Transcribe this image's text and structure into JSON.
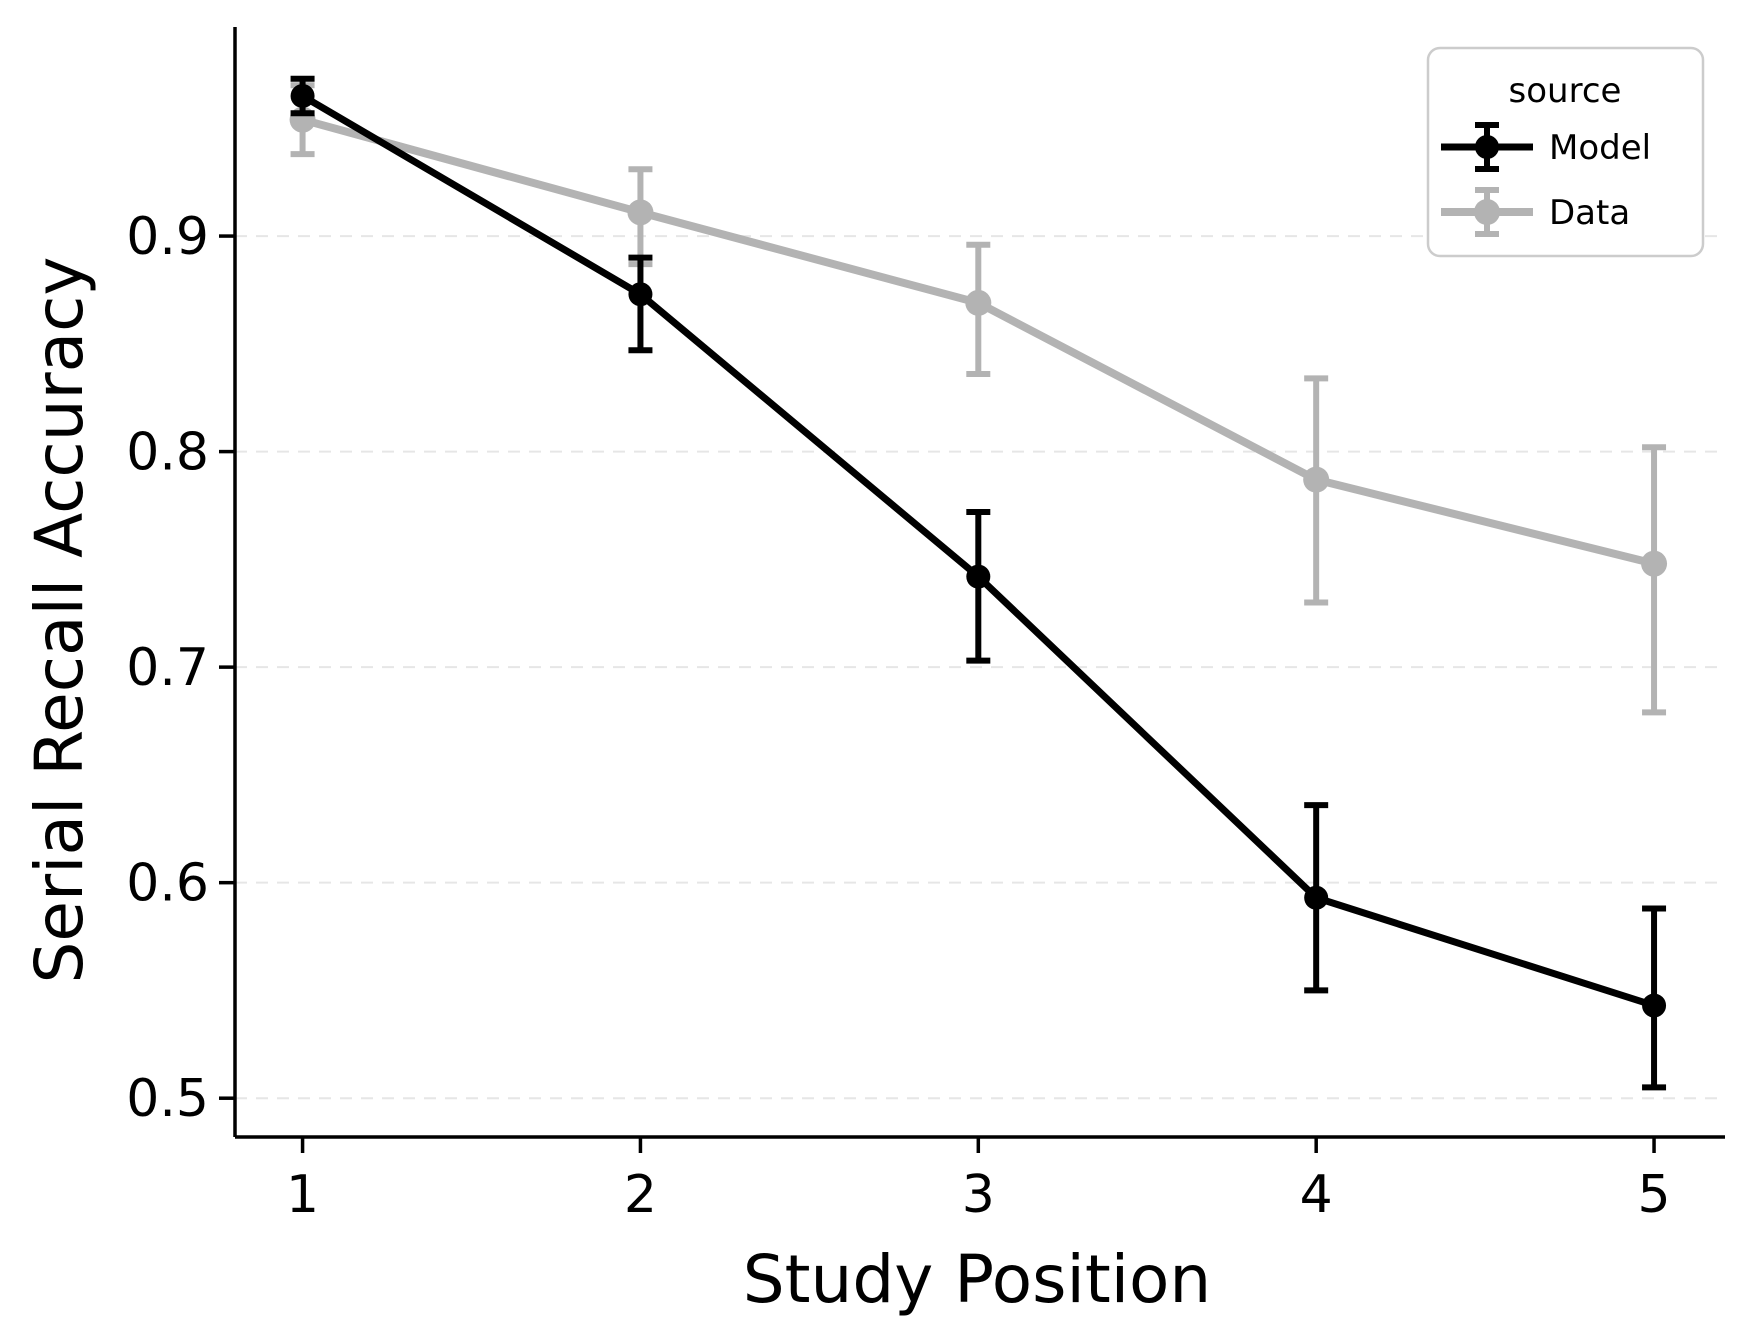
{
  "chart_data": {
    "type": "line",
    "title": "",
    "xlabel": "Study Position",
    "ylabel": "Serial Recall Accuracy",
    "x": [
      1,
      2,
      3,
      4,
      5
    ],
    "xticklabels": [
      "1",
      "2",
      "3",
      "4",
      "5"
    ],
    "yticks": [
      0.5,
      0.6,
      0.7,
      0.8,
      0.9
    ],
    "yticklabels": [
      "0.5",
      "0.6",
      "0.7",
      "0.8",
      "0.9"
    ],
    "xlim": [
      0.8,
      5.21
    ],
    "ylim": [
      0.482,
      0.997
    ],
    "grid": "horizontal-dashed",
    "legend": {
      "title": "source",
      "position": "upper-right"
    },
    "series": [
      {
        "name": "Model",
        "color": "#000000",
        "line_width": 7,
        "marker_radius": 12,
        "values": [
          0.965,
          0.873,
          0.742,
          0.593,
          0.543
        ],
        "err_lo": [
          0.957,
          0.847,
          0.703,
          0.55,
          0.505
        ],
        "err_hi": [
          0.973,
          0.89,
          0.772,
          0.636,
          0.588
        ]
      },
      {
        "name": "Data",
        "color": "#b3b3b3",
        "line_width": 8,
        "marker_radius": 13,
        "values": [
          0.954,
          0.911,
          0.869,
          0.787,
          0.748
        ],
        "err_lo": [
          0.938,
          0.887,
          0.836,
          0.73,
          0.679
        ],
        "err_hi": [
          0.97,
          0.931,
          0.896,
          0.834,
          0.802
        ]
      }
    ],
    "colors": {
      "background": "#ffffff",
      "grid": "#e6e6e6",
      "spine": "#000000",
      "text": "#000000",
      "legend_border": "#cccccc"
    }
  }
}
